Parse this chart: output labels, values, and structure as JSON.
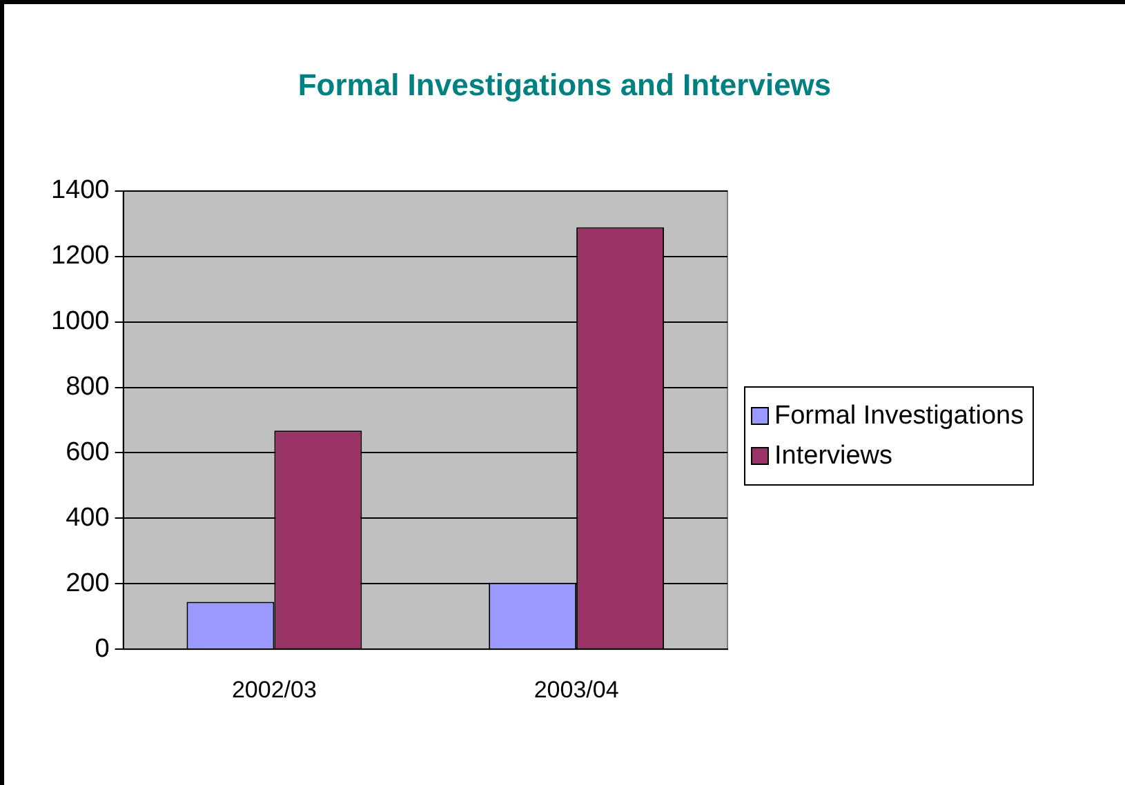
{
  "chart_data": {
    "type": "bar",
    "title": "Formal Investigations and Interviews",
    "categories": [
      "2002/03",
      "2003/04"
    ],
    "series": [
      {
        "name": "Formal Investigations",
        "color": "#9999ff",
        "values": [
          145,
          203
        ]
      },
      {
        "name": "Interviews",
        "color": "#993366",
        "values": [
          668,
          1289
        ]
      }
    ],
    "ylim": [
      0,
      1400
    ],
    "yticks": [
      0,
      200,
      400,
      600,
      800,
      1000,
      1200,
      1400
    ],
    "grid": "y",
    "legend": "right"
  }
}
